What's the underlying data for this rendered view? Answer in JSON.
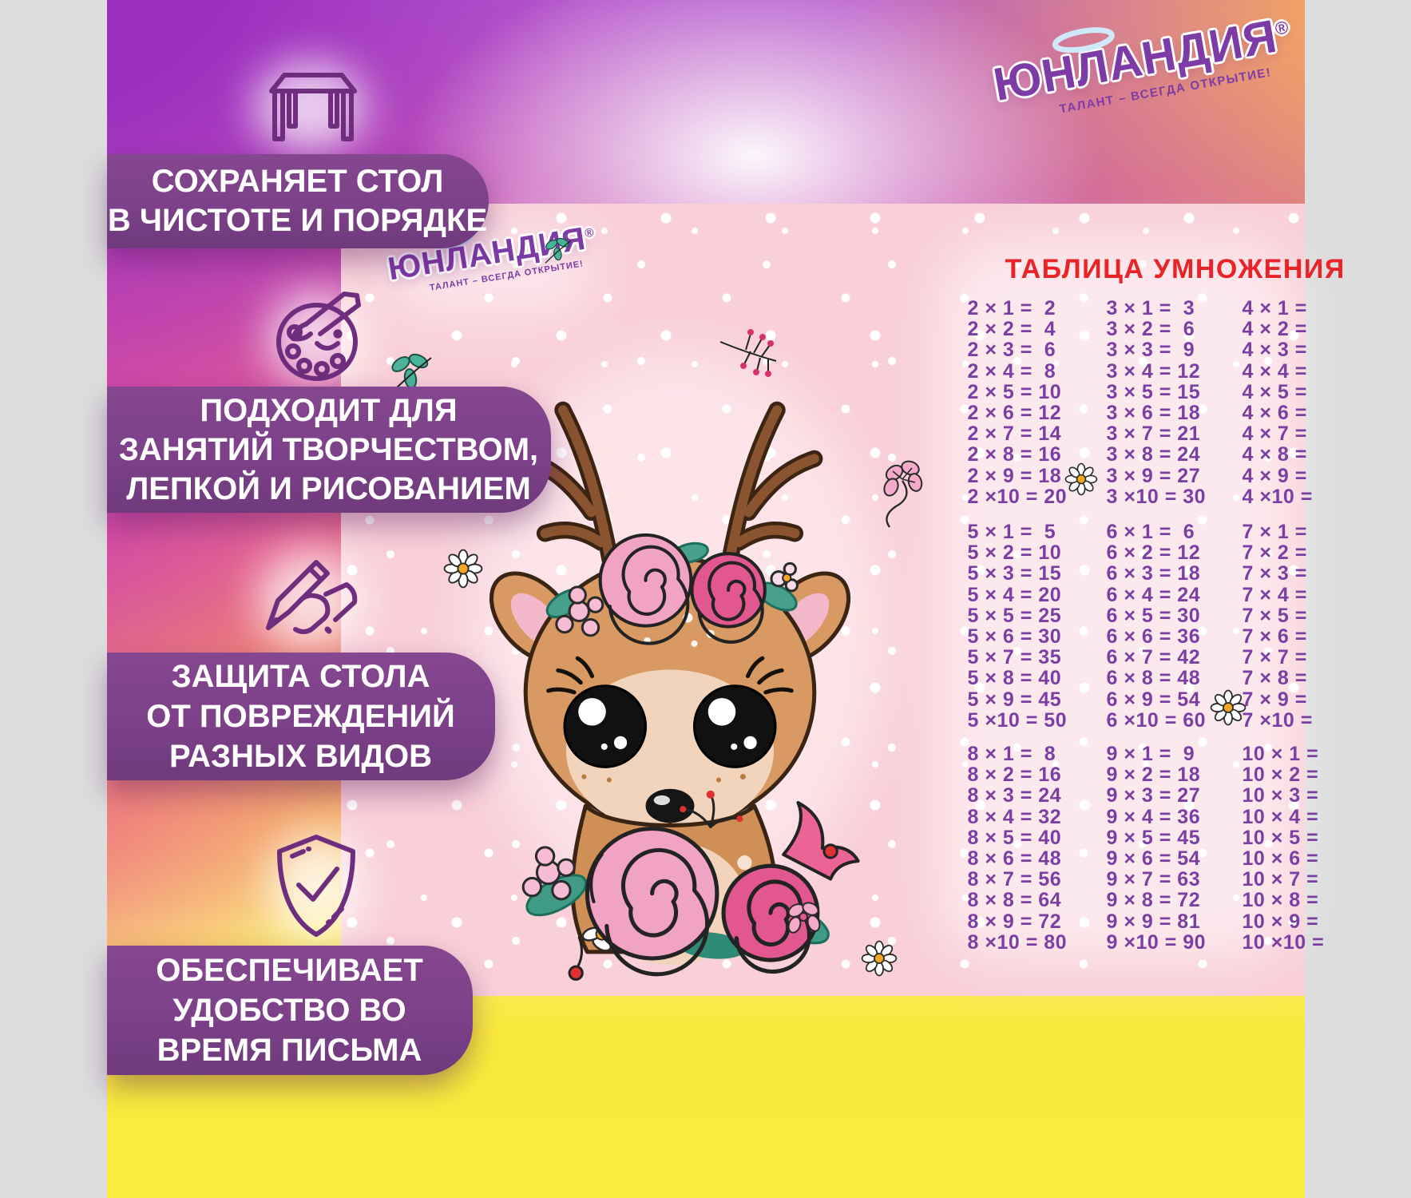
{
  "brand": {
    "name": "ЮНЛАНДИЯ",
    "registered": "®",
    "tagline": "ТАЛАНТ – ВСЕГДА ОТКРЫТИЕ!"
  },
  "features": [
    {
      "icon": "table-icon",
      "lines": [
        "СОХРАНЯЕТ СТОЛ",
        "В ЧИСТОТЕ И ПОРЯДКЕ"
      ]
    },
    {
      "icon": "palette-icon",
      "lines": [
        "ПОДХОДИТ ДЛЯ",
        "ЗАНЯТИЙ ТВОРЧЕСТВОМ,",
        "ЛЕПКОЙ И РИСОВАНИЕМ"
      ]
    },
    {
      "icon": "writing-hand-icon",
      "lines": [
        "ЗАЩИТА СТОЛА",
        "ОТ ПОВРЕЖДЕНИЙ",
        "РАЗНЫХ ВИДОВ"
      ]
    },
    {
      "icon": "shield-check-icon",
      "lines": [
        "ОБЕСПЕЧИВАЕТ",
        "УДОБСТВО ВО",
        "ВРЕМЯ ПИСЬМА"
      ]
    }
  ],
  "mat": {
    "table": {
      "title": "ТАБЛИЦА УМНОЖЕНИЯ",
      "blocks": [
        {
          "columns": [
            [
              "2 × 1 =  2",
              "2 × 2 =  4",
              "2 × 3 =  6",
              "2 × 4 =  8",
              "2 × 5 = 10",
              "2 × 6 = 12",
              "2 × 7 = 14",
              "2 × 8 = 16",
              "2 × 9 = 18",
              "2 ×10 = 20"
            ],
            [
              "3 × 1 =  3",
              "3 × 2 =  6",
              "3 × 3 =  9",
              "3 × 4 = 12",
              "3 × 5 = 15",
              "3 × 6 = 18",
              "3 × 7 = 21",
              "3 × 8 = 24",
              "3 × 9 = 27",
              "3 ×10 = 30"
            ],
            [
              "4 × 1 =",
              "4 × 2 =",
              "4 × 3 =",
              "4 × 4 =",
              "4 × 5 =",
              "4 × 6 =",
              "4 × 7 =",
              "4 × 8 =",
              "4 × 9 =",
              "4 ×10 ="
            ]
          ]
        },
        {
          "columns": [
            [
              "5 × 1 =  5",
              "5 × 2 = 10",
              "5 × 3 = 15",
              "5 × 4 = 20",
              "5 × 5 = 25",
              "5 × 6 = 30",
              "5 × 7 = 35",
              "5 × 8 = 40",
              "5 × 9 = 45",
              "5 ×10 = 50"
            ],
            [
              "6 × 1 =  6",
              "6 × 2 = 12",
              "6 × 3 = 18",
              "6 × 4 = 24",
              "6 × 5 = 30",
              "6 × 6 = 36",
              "6 × 7 = 42",
              "6 × 8 = 48",
              "6 × 9 = 54",
              "6 ×10 = 60"
            ],
            [
              "7 × 1 =",
              "7 × 2 =",
              "7 × 3 =",
              "7 × 4 =",
              "7 × 5 =",
              "7 × 6 =",
              "7 × 7 =",
              "7 × 8 =",
              "7 × 9 =",
              "7 ×10 ="
            ]
          ]
        },
        {
          "columns": [
            [
              "8 × 1 =  8",
              "8 × 2 = 16",
              "8 × 3 = 24",
              "8 × 4 = 32",
              "8 × 5 = 40",
              "8 × 6 = 48",
              "8 × 7 = 56",
              "8 × 8 = 64",
              "8 × 9 = 72",
              "8 ×10 = 80"
            ],
            [
              "9 × 1 =  9",
              "9 × 2 = 18",
              "9 × 3 = 27",
              "9 × 4 = 36",
              "9 × 5 = 45",
              "9 × 6 = 54",
              "9 × 7 = 63",
              "9 × 8 = 72",
              "9 × 9 = 81",
              "9 ×10 = 90"
            ],
            [
              "10 × 1 =",
              "10 × 2 =",
              "10 × 3 =",
              "10 × 4 =",
              "10 × 5 =",
              "10 × 6 =",
              "10 × 7 =",
              "10 × 8 =",
              "10 × 9 =",
              "10 ×10 ="
            ]
          ]
        }
      ]
    }
  },
  "colors": {
    "badge_purple": "#7c4189",
    "icon_purple": "#6e2d7d",
    "table_text_purple": "#7b3fa4",
    "title_red": "#e82429",
    "mat_pink": "#f9cfd8",
    "bottom_yellow": "#f9e93b",
    "logo_purple": "#7d3ba6",
    "top_left_purple": "#9c2fbe"
  }
}
